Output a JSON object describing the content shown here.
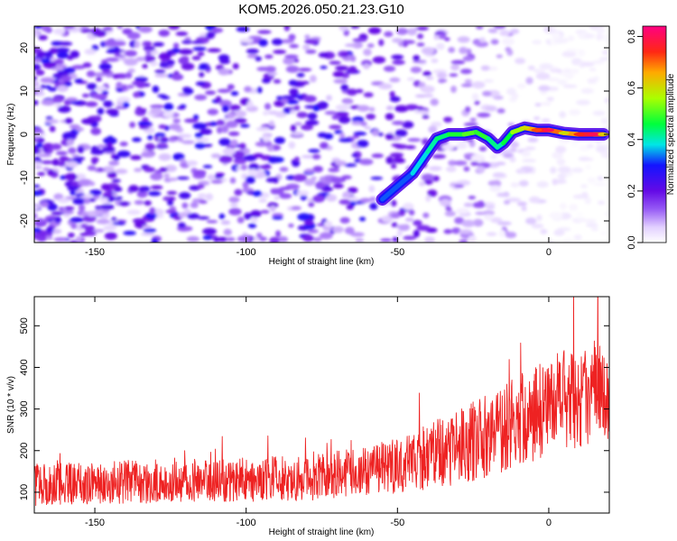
{
  "title": "KOM5.2026.050.21.23.G10",
  "chart_data": [
    {
      "type": "heatmap",
      "panel": "spectrogram",
      "title": "KOM5.2026.050.21.23.G10",
      "xlabel": "Height of straight line (km)",
      "ylabel": "Frequency (Hz)",
      "xlim": [
        -170,
        20
      ],
      "ylim": [
        -25,
        25
      ],
      "xticks": [
        -150,
        -100,
        -50,
        0
      ],
      "yticks": [
        -20,
        -10,
        0,
        10,
        20
      ],
      "colorbar": {
        "label": "Normalized spectral amplitude",
        "range": [
          0.0,
          0.84
        ],
        "ticks": [
          0.0,
          0.2,
          0.4,
          0.6,
          0.8
        ],
        "tick_labels": [
          "0.0",
          "0.2",
          "0.4",
          "0.6",
          "0.8"
        ]
      },
      "signal_track": {
        "x": [
          -55,
          -45,
          -40,
          -37,
          -33,
          -28,
          -24,
          -20,
          -17,
          -15,
          -12,
          -8,
          -4,
          0,
          5,
          10,
          15,
          18
        ],
        "y": [
          -15,
          -9,
          -4,
          -1,
          0,
          0,
          0.5,
          -1,
          -3,
          -2,
          0.5,
          1.5,
          1,
          1,
          0.3,
          0,
          0,
          0
        ],
        "amplitude": [
          0.3,
          0.35,
          0.4,
          0.42,
          0.45,
          0.5,
          0.52,
          0.45,
          0.4,
          0.42,
          0.5,
          0.6,
          0.72,
          0.8,
          0.6,
          0.74,
          0.8,
          0.62
        ]
      }
    },
    {
      "type": "line",
      "panel": "snr",
      "xlabel": "Height of straight line (km)",
      "ylabel": "SNR (10 * v/v)",
      "xlim": [
        -170,
        20
      ],
      "ylim": [
        50,
        570
      ],
      "xticks": [
        -150,
        -100,
        -50,
        0
      ],
      "yticks": [
        100,
        200,
        300,
        400,
        500
      ],
      "series": [
        {
          "name": "SNR",
          "color": "#ee2222",
          "envelope_x": [
            -170,
            -140,
            -110,
            -80,
            -60,
            -50,
            -40,
            -30,
            -20,
            -10,
            0,
            10,
            20
          ],
          "envelope_mean": [
            118,
            125,
            128,
            135,
            150,
            165,
            185,
            210,
            235,
            270,
            310,
            330,
            350
          ],
          "envelope_spread": [
            50,
            52,
            52,
            55,
            60,
            68,
            80,
            90,
            100,
            110,
            120,
            125,
            125
          ]
        }
      ]
    }
  ]
}
